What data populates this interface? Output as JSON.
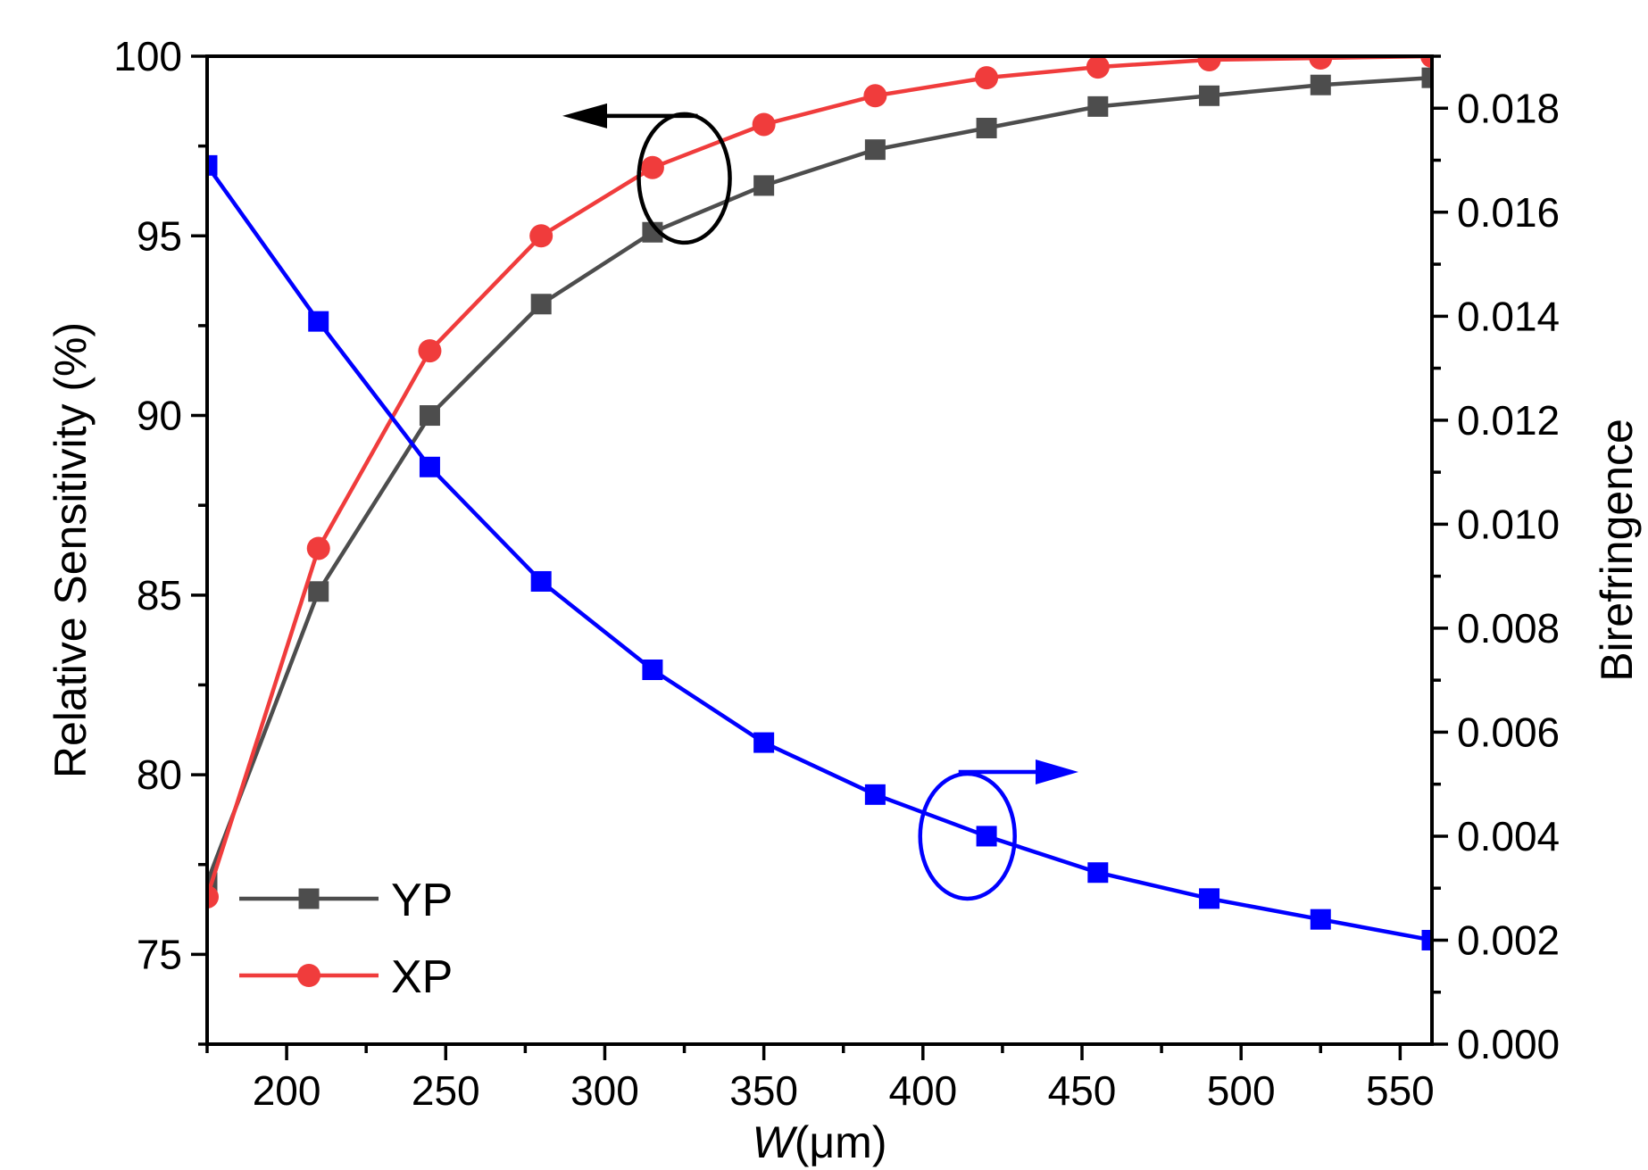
{
  "chart_data": {
    "type": "line",
    "title": "",
    "x": [
      175,
      210,
      245,
      280,
      315,
      350,
      385,
      420,
      455,
      490,
      525,
      560
    ],
    "xlabel": {
      "italic": "W",
      "rest": "(μm)"
    },
    "xlim": [
      175,
      560
    ],
    "xticks": [
      "200",
      "250",
      "300",
      "350",
      "400",
      "450",
      "500",
      "550"
    ],
    "xtick_values": [
      200,
      250,
      300,
      350,
      400,
      450,
      500,
      550
    ],
    "ylabel_left": "Relative Sensitivity (%)",
    "ylim_left": [
      72.5,
      100
    ],
    "yticks_left": [
      "75",
      "80",
      "85",
      "90",
      "95",
      "100"
    ],
    "ytick_values_left": [
      75,
      80,
      85,
      90,
      95,
      100
    ],
    "ylabel_right": "Birefringence",
    "ylim_right": [
      0,
      0.019
    ],
    "yticks_right": [
      "0.000",
      "0.002",
      "0.004",
      "0.006",
      "0.008",
      "0.010",
      "0.012",
      "0.014",
      "0.016",
      "0.018"
    ],
    "ytick_values_right": [
      0,
      0.002,
      0.004,
      0.006,
      0.008,
      0.01,
      0.012,
      0.014,
      0.016,
      0.018
    ],
    "series": [
      {
        "name": "YP",
        "axis": "left",
        "color": "#4d4d4d",
        "marker": "square",
        "values": [
          77.0,
          85.1,
          90.0,
          93.1,
          95.1,
          96.4,
          97.4,
          98.0,
          98.6,
          98.9,
          99.2,
          99.4
        ]
      },
      {
        "name": "XP",
        "axis": "left",
        "color": "#f03c3c",
        "marker": "circle",
        "values": [
          76.6,
          86.3,
          91.8,
          95.0,
          96.9,
          98.1,
          98.9,
          99.4,
          99.7,
          99.9,
          99.95,
          100.0
        ]
      },
      {
        "name": "Birefringence",
        "axis": "right",
        "color": "#0000ff",
        "marker": "square",
        "values": [
          0.0169,
          0.0139,
          0.0111,
          0.0089,
          0.0072,
          0.0058,
          0.0048,
          0.004,
          0.0033,
          0.0028,
          0.0024,
          0.002
        ]
      }
    ],
    "legend": {
      "position": "bottom-left",
      "entries": [
        "YP",
        "XP"
      ]
    },
    "annotations": [
      {
        "type": "ellipse-arrow",
        "series": "YP/XP",
        "points_to": "left axis",
        "color": "#000000",
        "x": 325,
        "y_left": 96.6
      },
      {
        "type": "ellipse-arrow",
        "series": "Birefringence",
        "points_to": "right axis",
        "color": "#0000ff",
        "x": 414,
        "y_right": 0.004
      }
    ]
  }
}
